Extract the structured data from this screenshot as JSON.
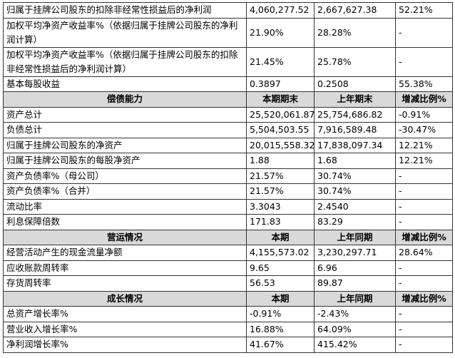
{
  "table": {
    "sections": [
      {
        "rows": [
          [
            "归属于挂牌公司股东的扣除非经常性损益后的净利润",
            "4,060,277.52",
            "2,667,627.38",
            "52.21%"
          ],
          [
            "加权平均净资产收益率%（依据归属于挂牌公司股东的净利润计算）",
            "21.90%",
            "28.28%",
            "-"
          ],
          [
            "加权平均净资产收益率%（依据归属于挂牌公司股东的扣除非经常性损益后的净利润计算）",
            "21.45%",
            "25.78%",
            "-"
          ],
          [
            "基本每股收益",
            "0.3897",
            "0.2508",
            "55.38%"
          ]
        ]
      },
      {
        "header": [
          "偿债能力",
          "本期期末",
          "上年期末",
          "增减比例%"
        ],
        "rows": [
          [
            "资产总计",
            "25,520,061.87",
            "25,754,686.82",
            "-0.91%"
          ],
          [
            "负债总计",
            "5,504,503.55",
            "7,916,589.48",
            "-30.47%"
          ],
          [
            "归属于挂牌公司股东的净资产",
            "20,015,558.32",
            "17,838,097.34",
            "12.21%"
          ],
          [
            "归属于挂牌公司股东的每股净资产",
            "1.88",
            "1.68",
            "12.21%"
          ],
          [
            "资产负债率%（母公司）",
            "21.57%",
            "30.74%",
            "-"
          ],
          [
            "资产负债率%（合并）",
            "21.57%",
            "30.74%",
            "-"
          ],
          [
            "流动比率",
            "3.3043",
            "2.4540",
            "-"
          ],
          [
            "利息保障倍数",
            "171.83",
            "83.29",
            "-"
          ]
        ]
      },
      {
        "header": [
          "营运情况",
          "本期",
          "上年同期",
          "增减比例%"
        ],
        "rows": [
          [
            "经营活动产生的现金流量净额",
            "4,155,573.02",
            "3,230,297.71",
            "28.64%"
          ],
          [
            "应收账款周转率",
            "9.65",
            "6.96",
            "-"
          ],
          [
            "存货周转率",
            "56.53",
            "89.87",
            "-"
          ]
        ]
      },
      {
        "header": [
          "成长情况",
          "本期",
          "上年同期",
          "增减比例%"
        ],
        "rows": [
          [
            "总资产增长率%",
            "-0.91%",
            "-2.43%",
            "-"
          ],
          [
            "营业收入增长率%",
            "16.88%",
            "64.09%",
            "-"
          ],
          [
            "净利润增长率%",
            "41.67%",
            "415.42%",
            "-"
          ]
        ]
      }
    ]
  }
}
